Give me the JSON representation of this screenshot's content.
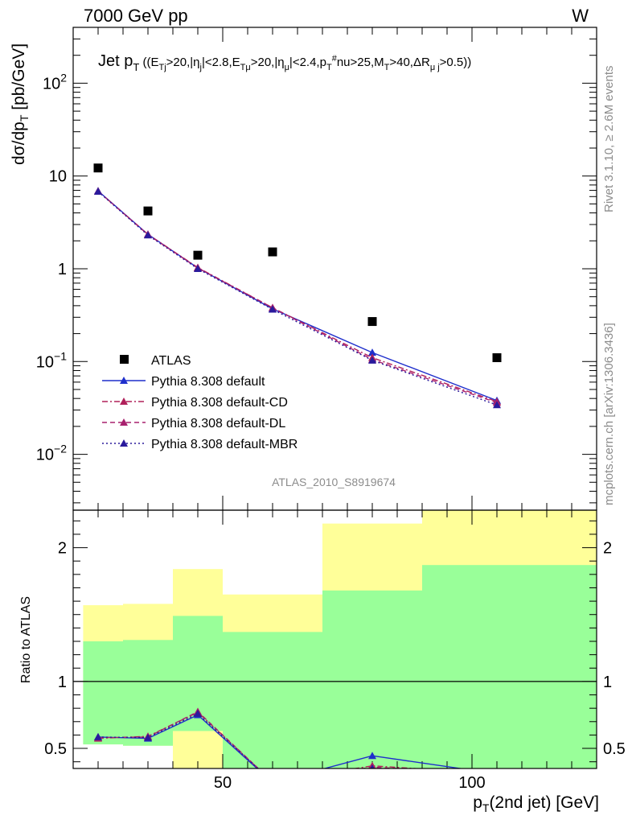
{
  "header": {
    "left": "7000 GeV pp",
    "right": "W"
  },
  "side_labels": {
    "rivet": "Rivet 3.1.10, ≥ 2.6M events",
    "mcplots": "mcplots.cern.ch [arXiv:1306.3436]"
  },
  "analysis_id": "ATLAS_2010_S8919674",
  "chart_data": [
    {
      "type": "scatter",
      "title": "Jet pT ((ETj>20,|ηj|<2.8,ETμ>20,|ημ|<2.4,pT#nu>25,MT>40,ΔRμj>0.5))",
      "ylabel": "dσ/dpT [pb/GeV]",
      "xlim": [
        20,
        125
      ],
      "ylim": [
        0.0025,
        400
      ],
      "log_y": true,
      "x_bin_edges": [
        20,
        30,
        40,
        50,
        70,
        90,
        125
      ],
      "x": [
        25,
        35,
        45,
        60,
        80,
        105
      ],
      "y_tick_labels": [
        "10⁻²",
        "10⁻¹",
        "1",
        "10",
        "10²"
      ],
      "legend_position": "bottom-left",
      "series": [
        {
          "name": "ATLAS",
          "marker": "square",
          "color": "#000000",
          "values": [
            12.2,
            4.2,
            1.4,
            1.52,
            0.27,
            0.11
          ]
        },
        {
          "name": "Pythia 8.308 default",
          "marker": "triangle",
          "line": "solid",
          "color": "#1f2fcc",
          "values": [
            6.9,
            2.35,
            1.02,
            0.37,
            0.125,
            0.038
          ]
        },
        {
          "name": "Pythia 8.308 default-CD",
          "marker": "triangle",
          "line": "dashdot",
          "color": "#b0205a",
          "values": [
            6.85,
            2.35,
            1.03,
            0.38,
            0.11,
            0.037
          ]
        },
        {
          "name": "Pythia 8.308 default-DL",
          "marker": "triangle",
          "line": "dashed",
          "color": "#a8206e",
          "values": [
            6.85,
            2.33,
            1.02,
            0.38,
            0.105,
            0.036
          ]
        },
        {
          "name": "Pythia 8.308 default-MBR",
          "marker": "triangle",
          "line": "dotted",
          "color": "#2a1a9c",
          "values": [
            6.8,
            2.3,
            1.0,
            0.365,
            0.103,
            0.034
          ]
        }
      ]
    },
    {
      "type": "line",
      "ylabel": "Ratio to ATLAS",
      "xlabel": "pT(2nd jet) [GeV]",
      "xlim": [
        20,
        125
      ],
      "ylim": [
        0.35,
        2.28
      ],
      "x_ticks": [
        50,
        100
      ],
      "y_ticks": [
        0.5,
        1,
        2
      ],
      "bands": {
        "bin_edges": [
          22,
          30,
          40,
          50,
          70,
          90,
          125
        ],
        "inner_low": [
          0.53,
          0.52,
          0.63,
          0.35,
          0.35,
          0.35
        ],
        "inner_high": [
          1.3,
          1.31,
          1.49,
          1.37,
          1.68,
          1.87
        ],
        "outer_low": [
          0.53,
          0.52,
          0.35,
          0.38,
          0.35,
          0.35
        ],
        "outer_high": [
          1.57,
          1.58,
          1.84,
          1.65,
          2.18,
          2.28
        ],
        "inner_color": "#99ff99",
        "outer_color": "#ffff99"
      },
      "x": [
        25,
        35,
        45,
        60,
        80,
        105
      ],
      "series": [
        {
          "name": "Pythia 8.308 default",
          "color": "#1f2fcc",
          "line": "solid",
          "values": [
            0.585,
            0.575,
            0.75,
            0.245,
            0.445,
            0.31
          ]
        },
        {
          "name": "Pythia 8.308 default-CD",
          "color": "#b0205a",
          "line": "dashdot",
          "values": [
            0.575,
            0.59,
            0.77,
            0.25,
            0.37,
            0.31
          ]
        },
        {
          "name": "Pythia 8.308 default-DL",
          "color": "#a8206e",
          "line": "dashed",
          "values": [
            0.58,
            0.585,
            0.775,
            0.25,
            0.36,
            0.31
          ]
        },
        {
          "name": "Pythia 8.308 default-MBR",
          "color": "#2a1a9c",
          "line": "dotted",
          "values": [
            0.585,
            0.58,
            0.76,
            0.25,
            0.35,
            0.31
          ]
        }
      ]
    }
  ]
}
